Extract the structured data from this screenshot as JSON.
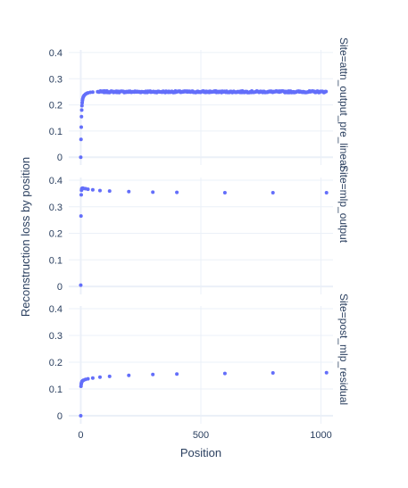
{
  "chart_data": {
    "type": "scatter",
    "xlabel": "Position",
    "ylabel": "Reconstruction loss by position",
    "xlim": [
      -50,
      1050
    ],
    "x_ticks": [
      0,
      500,
      1000
    ],
    "y_ticks": [
      0,
      0.1,
      0.2,
      0.3,
      0.4
    ],
    "ylim": [
      -0.03,
      0.41
    ],
    "color": "#636efa",
    "grid": true,
    "facets": [
      {
        "label": "Site=attn_output_pre_linear",
        "head": [
          [
            0,
            0.0
          ],
          [
            1,
            0.068
          ],
          [
            2,
            0.115
          ],
          [
            3,
            0.155
          ],
          [
            4,
            0.18
          ],
          [
            5,
            0.197
          ],
          [
            6,
            0.208
          ],
          [
            7,
            0.217
          ],
          [
            8,
            0.223
          ],
          [
            10,
            0.229
          ],
          [
            12,
            0.233
          ],
          [
            15,
            0.237
          ],
          [
            20,
            0.241
          ],
          [
            25,
            0.244
          ],
          [
            30,
            0.246
          ],
          [
            40,
            0.248
          ],
          [
            50,
            0.249
          ],
          [
            70,
            0.25
          ]
        ],
        "plateau": 0.251,
        "plateau_to": 1023
      },
      {
        "label": "Site=mlp_output",
        "head": [
          [
            0,
            0.005
          ],
          [
            1,
            0.265
          ],
          [
            2,
            0.345
          ],
          [
            3,
            0.362
          ],
          [
            4,
            0.367
          ],
          [
            5,
            0.369
          ],
          [
            8,
            0.37
          ],
          [
            12,
            0.369
          ],
          [
            20,
            0.368
          ],
          [
            30,
            0.366
          ],
          [
            50,
            0.364
          ],
          [
            80,
            0.361
          ],
          [
            120,
            0.359
          ],
          [
            200,
            0.357
          ],
          [
            300,
            0.355
          ],
          [
            400,
            0.354
          ],
          [
            600,
            0.353
          ],
          [
            800,
            0.353
          ],
          [
            1023,
            0.353
          ]
        ],
        "plateau": 0.353,
        "plateau_to": 1023
      },
      {
        "label": "Site=post_mlp_residual",
        "head": [
          [
            0,
            0.0
          ],
          [
            1,
            0.11
          ],
          [
            2,
            0.118
          ],
          [
            3,
            0.123
          ],
          [
            5,
            0.128
          ],
          [
            8,
            0.131
          ],
          [
            12,
            0.133
          ],
          [
            20,
            0.136
          ],
          [
            30,
            0.138
          ],
          [
            50,
            0.141
          ],
          [
            80,
            0.144
          ],
          [
            120,
            0.147
          ],
          [
            200,
            0.151
          ],
          [
            300,
            0.154
          ],
          [
            400,
            0.156
          ],
          [
            600,
            0.158
          ],
          [
            800,
            0.16
          ],
          [
            1023,
            0.161
          ]
        ],
        "plateau": 0.161,
        "plateau_to": 1023
      }
    ]
  }
}
